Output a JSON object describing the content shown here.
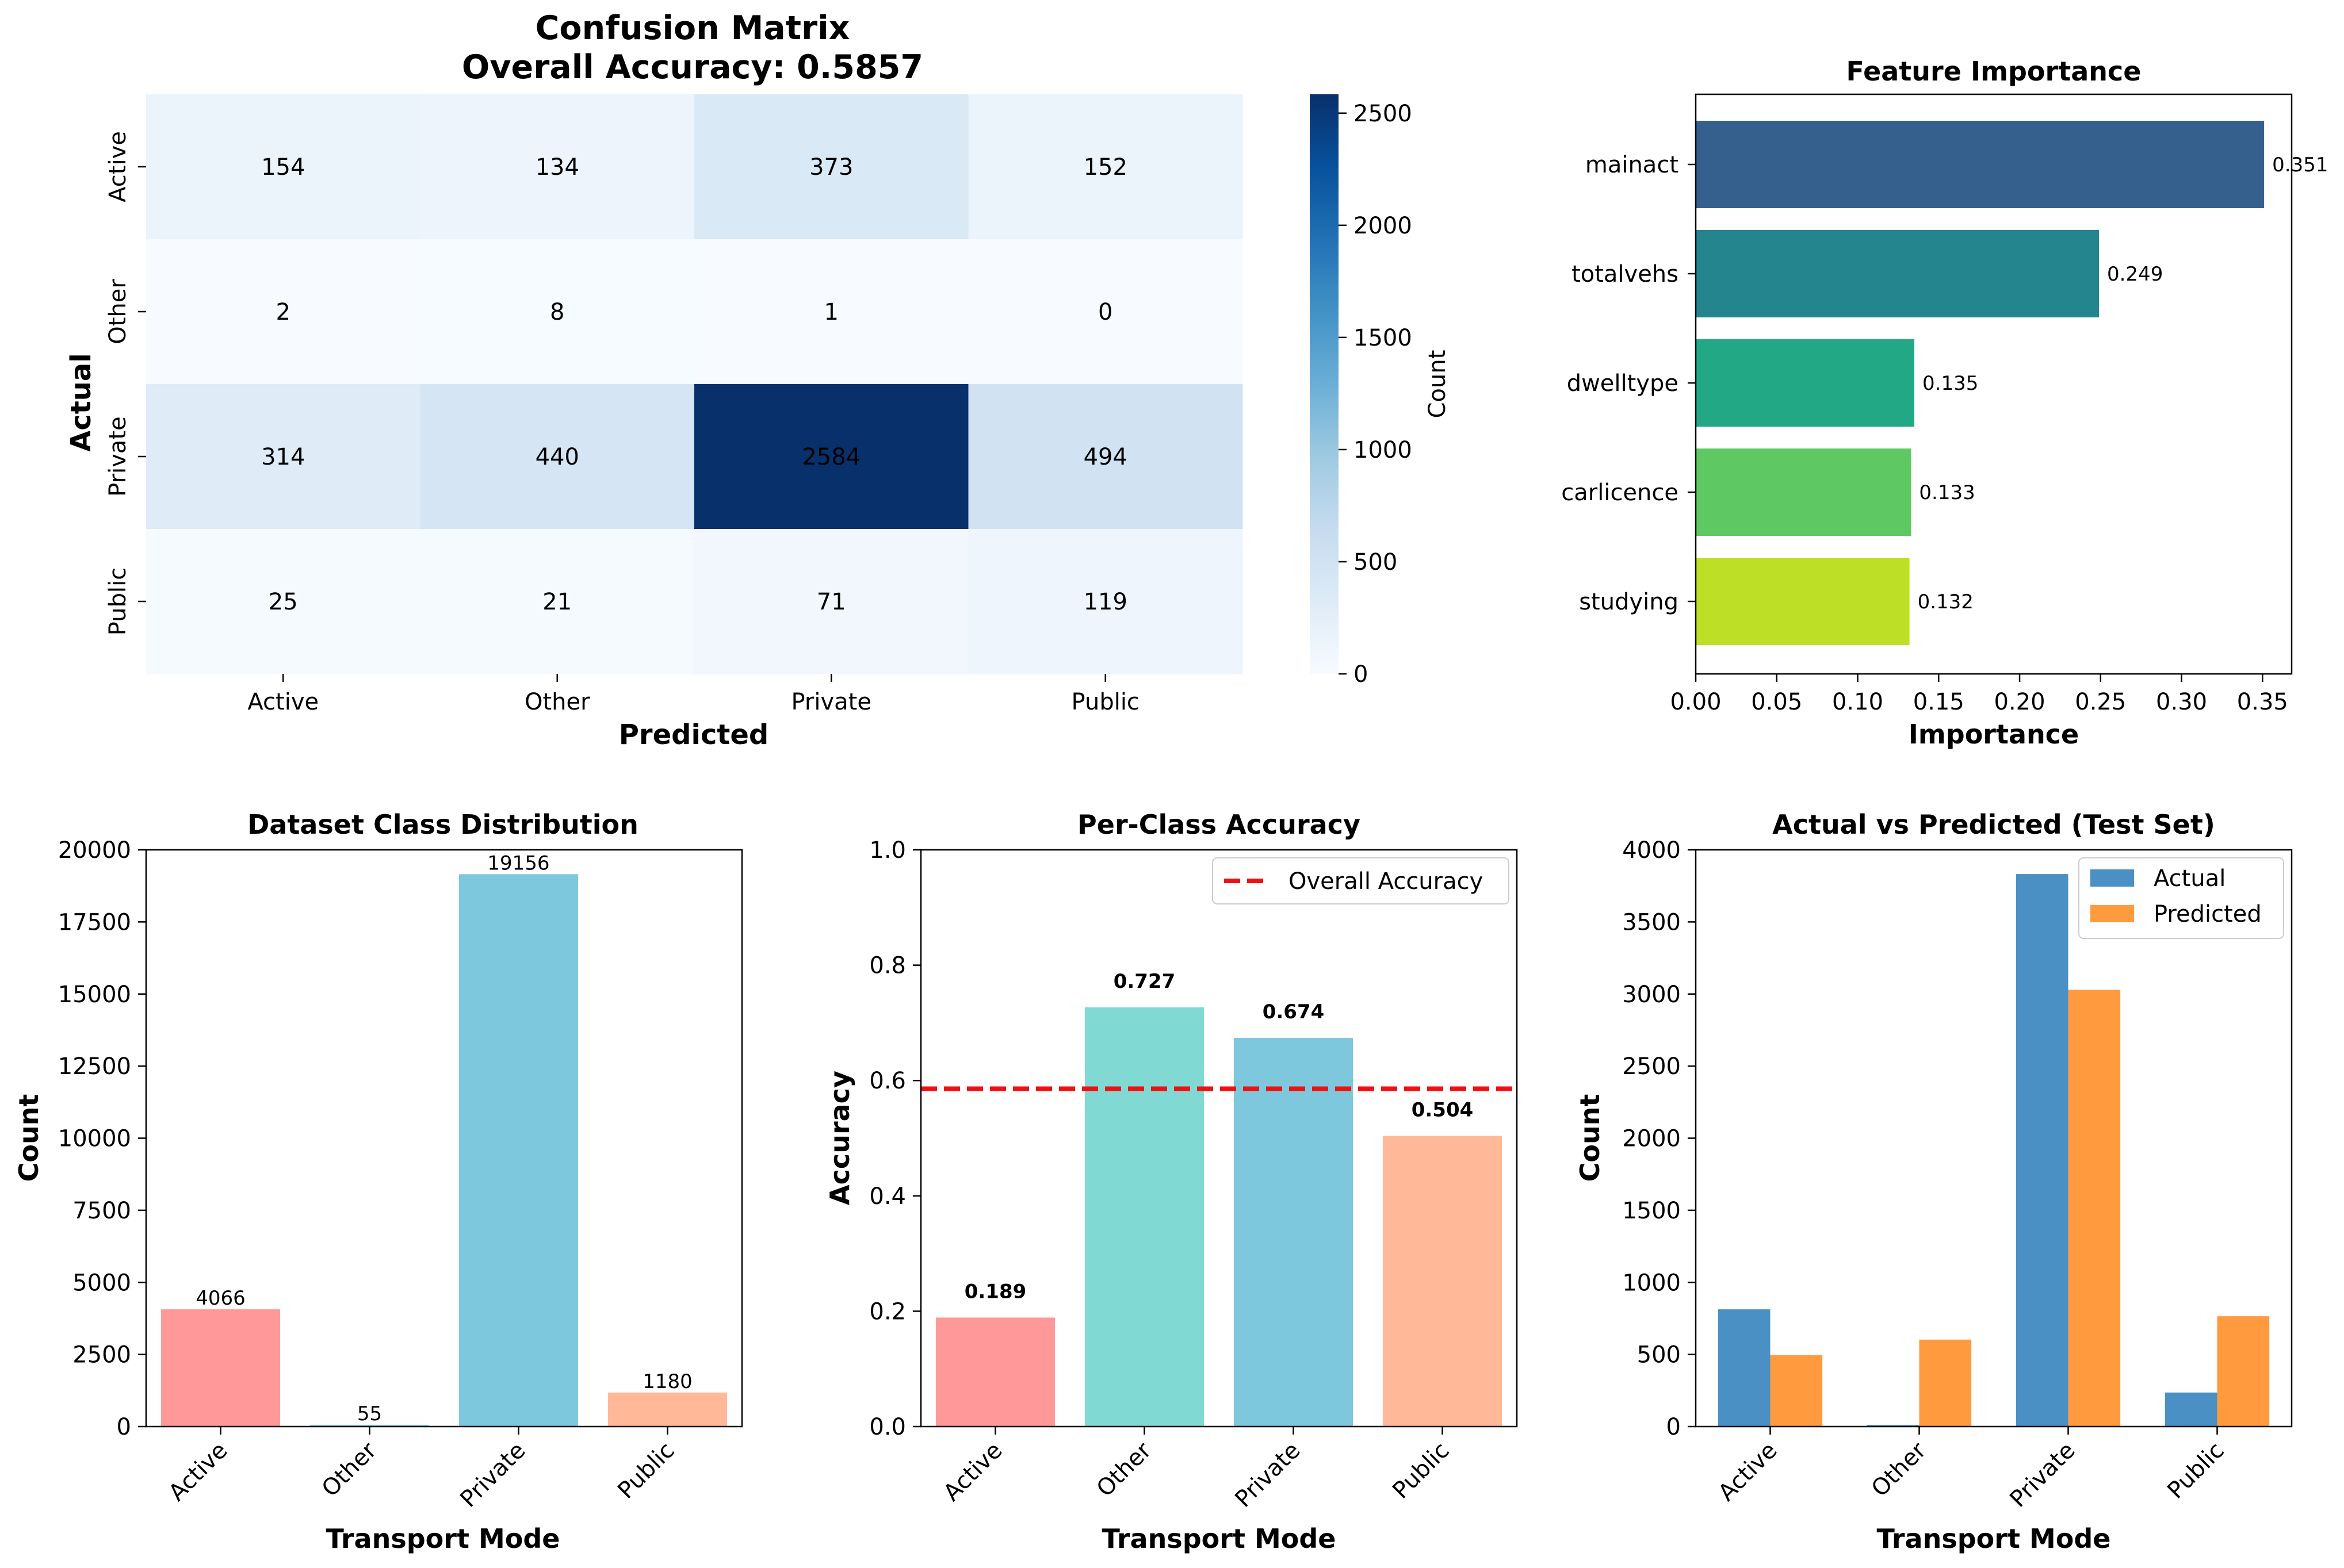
{
  "chart_data": [
    {
      "type": "heatmap",
      "title": "Confusion Matrix\nOverall Accuracy: 0.5857",
      "title_lines": [
        "Confusion Matrix",
        "Overall Accuracy: 0.5857"
      ],
      "xlabel": "Predicted",
      "ylabel": "Actual",
      "x_categories": [
        "Active",
        "Other",
        "Private",
        "Public"
      ],
      "y_categories": [
        "Active",
        "Other",
        "Private",
        "Public"
      ],
      "matrix": [
        [
          154,
          134,
          373,
          152
        ],
        [
          2,
          8,
          1,
          0
        ],
        [
          314,
          440,
          2584,
          494
        ],
        [
          25,
          21,
          71,
          119
        ]
      ],
      "colorbar": {
        "label": "Count",
        "min": 0,
        "max": 2584,
        "ticks": [
          0,
          500,
          1000,
          1500,
          2000,
          2500
        ],
        "colormap": "Blues"
      }
    },
    {
      "type": "bar",
      "orientation": "horizontal",
      "title": "Feature Importance",
      "xlabel": "Importance",
      "ylabel": "",
      "categories": [
        "mainact",
        "totalvehs",
        "dwelltype",
        "carlicence",
        "studying"
      ],
      "values": [
        0.351,
        0.249,
        0.135,
        0.133,
        0.132
      ],
      "value_labels": [
        "0.351",
        "0.249",
        "0.135",
        "0.133",
        "0.132"
      ],
      "colors": [
        "#355f8d",
        "#25858e",
        "#22a884",
        "#5ec962",
        "#bddf26"
      ],
      "xlim": [
        0,
        0.368
      ],
      "xticks": [
        0.0,
        0.05,
        0.1,
        0.15,
        0.2,
        0.25,
        0.3,
        0.35
      ],
      "xtick_labels": [
        "0.00",
        "0.05",
        "0.10",
        "0.15",
        "0.20",
        "0.25",
        "0.30",
        "0.35"
      ]
    },
    {
      "type": "bar",
      "title": "Dataset Class Distribution",
      "xlabel": "Transport Mode",
      "ylabel": "Count",
      "categories": [
        "Active",
        "Other",
        "Private",
        "Public"
      ],
      "values": [
        4066,
        55,
        19156,
        1180
      ],
      "value_labels": [
        "4066",
        "55",
        "19156",
        "1180"
      ],
      "colors": [
        "#ff9999",
        "#66d9cc",
        "#7ec8dd",
        "#ffb999"
      ],
      "ylim": [
        0,
        20000
      ],
      "yticks": [
        0,
        2500,
        5000,
        7500,
        10000,
        12500,
        15000,
        17500,
        20000
      ]
    },
    {
      "type": "bar",
      "title": "Per-Class Accuracy",
      "xlabel": "Transport Mode",
      "ylabel": "Accuracy",
      "categories": [
        "Active",
        "Other",
        "Private",
        "Public"
      ],
      "values": [
        0.189,
        0.727,
        0.674,
        0.504
      ],
      "value_labels": [
        "0.189",
        "0.727",
        "0.674",
        "0.504"
      ],
      "colors": [
        "#ff9999",
        "#80d9d2",
        "#7ec8dd",
        "#ffb999"
      ],
      "ylim": [
        0,
        1.0
      ],
      "yticks": [
        0.0,
        0.2,
        0.4,
        0.6,
        0.8,
        1.0
      ],
      "ytick_labels": [
        "0.0",
        "0.2",
        "0.4",
        "0.6",
        "0.8",
        "1.0"
      ],
      "reference_line": {
        "value": 0.5857,
        "label": "Overall Accuracy",
        "color": "#ee1111"
      },
      "legend": "top-right"
    },
    {
      "type": "bar",
      "grouped": true,
      "title": "Actual vs Predicted (Test Set)",
      "xlabel": "Transport Mode",
      "ylabel": "Count",
      "categories": [
        "Active",
        "Other",
        "Private",
        "Public"
      ],
      "series": [
        {
          "name": "Actual",
          "values": [
            813,
            11,
            3832,
            236
          ],
          "color": "#4a90c4"
        },
        {
          "name": "Predicted",
          "values": [
            495,
            603,
            3029,
            765
          ],
          "color": "#ff9a3f"
        }
      ],
      "ylim": [
        0,
        4000
      ],
      "yticks": [
        0,
        500,
        1000,
        1500,
        2000,
        2500,
        3000,
        3500,
        4000
      ],
      "legend": "top-right"
    }
  ]
}
